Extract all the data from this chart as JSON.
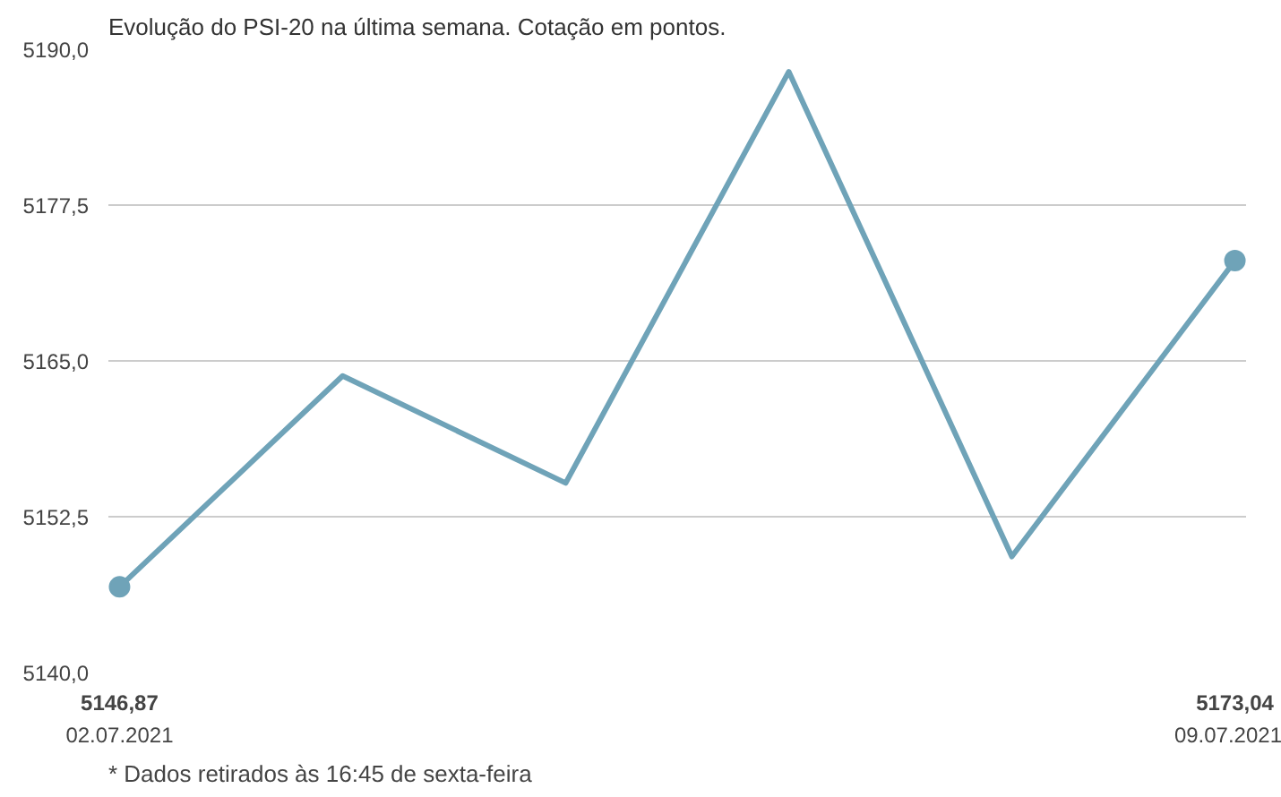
{
  "chart_data": {
    "type": "line",
    "title": "Evolução do PSI-20 na última semana. Cotação em pontos.",
    "categories": [
      "02.07.2021",
      null,
      null,
      null,
      null,
      "09.07.2021"
    ],
    "series": [
      {
        "color": "#6fa3b8",
        "values": [
          5146.87,
          5163.8,
          5155.2,
          5188.2,
          5149.3,
          5173.04
        ],
        "value_labels": [
          "5146,87",
          null,
          null,
          null,
          null,
          "5173,04"
        ]
      }
    ],
    "ylim": [
      5140,
      5190
    ],
    "yticks": [
      {
        "value": 5140,
        "label": "5140,0"
      },
      {
        "value": 5152.5,
        "label": "5152,5"
      },
      {
        "value": 5165,
        "label": "5165,0"
      },
      {
        "value": 5177.5,
        "label": "5177,5"
      },
      {
        "value": 5190,
        "label": "5190,0"
      }
    ],
    "grid": "y",
    "line_style": "solid",
    "annotations": [
      "* Dados retirados às 16:45 de sexta-feira"
    ]
  }
}
